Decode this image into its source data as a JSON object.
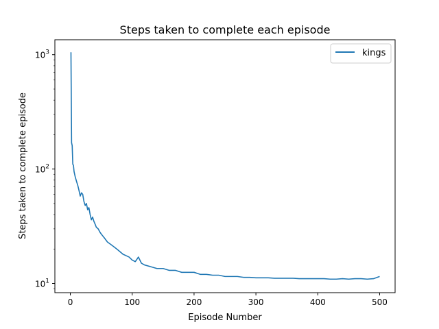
{
  "chart_data": {
    "type": "line",
    "title": "Steps taken to complete each episode",
    "xlabel": "Episode Number",
    "ylabel": "Steps taken to complete episode",
    "yscale": "log",
    "xlim": [
      -25,
      525
    ],
    "ylim": [
      8.3,
      1350
    ],
    "x_ticks": [
      0,
      100,
      200,
      300,
      400,
      500
    ],
    "x_tick_labels": [
      "0",
      "100",
      "200",
      "300",
      "400",
      "500"
    ],
    "y_ticks": [
      10,
      100,
      1000
    ],
    "grid": false,
    "legend": "upper right",
    "series": [
      {
        "name": "kings",
        "color": "#1f77b4",
        "x": [
          1,
          2,
          3,
          4,
          5,
          6,
          8,
          10,
          12,
          14,
          16,
          18,
          20,
          22,
          24,
          26,
          28,
          30,
          32,
          34,
          36,
          38,
          40,
          42,
          45,
          48,
          50,
          55,
          60,
          65,
          70,
          75,
          80,
          85,
          90,
          95,
          100,
          105,
          110,
          115,
          120,
          130,
          140,
          150,
          160,
          170,
          180,
          190,
          200,
          210,
          220,
          230,
          240,
          250,
          260,
          270,
          280,
          290,
          300,
          310,
          320,
          330,
          340,
          350,
          360,
          370,
          380,
          390,
          400,
          410,
          420,
          430,
          440,
          450,
          460,
          470,
          480,
          490,
          500
        ],
        "values": [
          1050,
          170,
          160,
          110,
          108,
          95,
          85,
          78,
          72,
          65,
          58,
          62,
          60,
          52,
          48,
          50,
          44,
          46,
          40,
          36,
          38,
          35,
          33,
          31,
          30,
          28,
          27,
          25,
          23,
          22,
          21,
          20,
          19,
          18,
          17.5,
          17,
          16,
          15.5,
          17,
          15,
          14.5,
          14,
          13.5,
          13.5,
          13,
          13,
          12.5,
          12.5,
          12.5,
          12,
          12,
          11.8,
          11.8,
          11.5,
          11.5,
          11.5,
          11.3,
          11.3,
          11.2,
          11.2,
          11.2,
          11.1,
          11.1,
          11.1,
          11.1,
          11,
          11,
          11,
          11,
          11,
          10.9,
          10.9,
          11,
          10.9,
          11,
          11,
          10.9,
          11,
          11.5
        ]
      }
    ]
  }
}
